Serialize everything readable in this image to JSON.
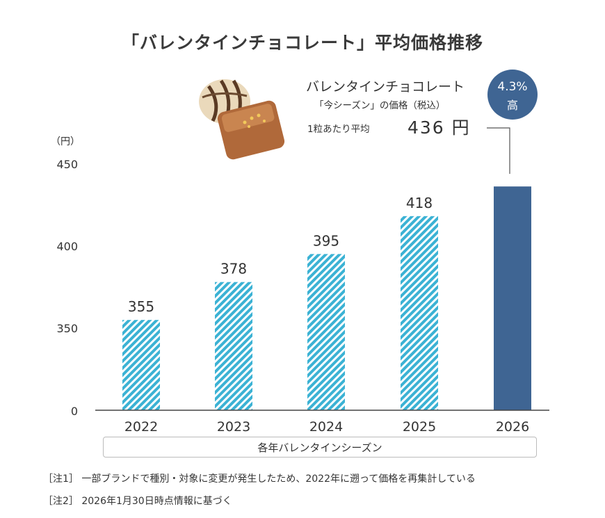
{
  "title": "「バレンタインチョコレート」平均価格推移",
  "callout": {
    "line1": "バレンタインチョコレート",
    "line2": "「今シーズン」の価格（税込）",
    "line3": "1粒あたり平均",
    "value": "436 円"
  },
  "badge": {
    "percent": "4.3%",
    "label": "高"
  },
  "unit": "（円）",
  "season_label": "各年バレンタインシーズン",
  "notes": [
    "［注1］ 一部ブランドで種別・対象に変更が発生したため、2022年に遡って価格を再集計している",
    "［注2］ 2026年1月30日時点情報に基づく"
  ],
  "colors": {
    "hatch_fg": "#3bb2d4",
    "hatch_bg": "#ffffff",
    "highlight": "#3f6593",
    "axis": "#444444"
  },
  "chart_data": {
    "type": "bar",
    "categories": [
      "2022",
      "2023",
      "2024",
      "2025",
      "2026"
    ],
    "values": [
      355,
      378,
      395,
      418,
      436
    ],
    "data_labels": [
      "355",
      "378",
      "395",
      "418",
      ""
    ],
    "y_ticks": [
      "0",
      "350",
      "400",
      "450"
    ],
    "y_axis_break": true,
    "ylim": [
      320,
      450
    ],
    "highlight_category": "2026",
    "grid": false
  }
}
